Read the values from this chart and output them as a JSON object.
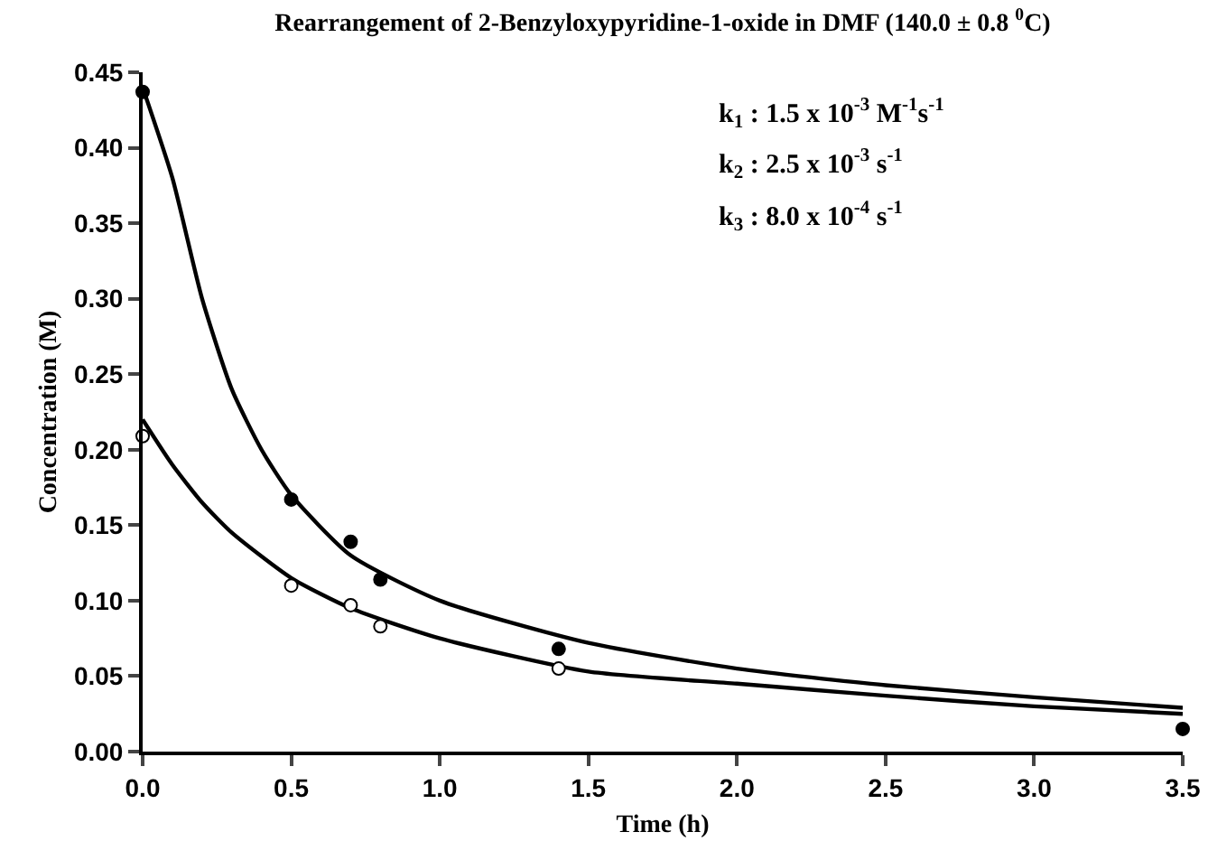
{
  "chart_data": {
    "type": "scatter",
    "title": "Rearrangement of 2-Benzyloxypyridine-1-oxide in DMF (140.0 ± 0.8 $^{0}$C)",
    "xlabel": "Time (h)",
    "ylabel": "Concentration (M)",
    "annotations": [
      "k$_{1}$ : 1.5 x 10$^{-3}$ M$^{-1}$s$^{-1}$",
      "k$_{2}$ : 2.5 x 10$^{-3}$ s$^{-1}$",
      "k$_{3}$ : 8.0 x 10$^{-4}$ s$^{-1}$"
    ],
    "xlim": [
      0,
      3.5
    ],
    "xticks": [
      {
        "value": 0,
        "label": "0.0"
      },
      0.5,
      {
        "value": 1,
        "label": "1.0"
      },
      1.5,
      {
        "value": 2,
        "label": "2.0"
      },
      2.5,
      {
        "value": 3,
        "label": "3.0"
      },
      3.5
    ],
    "ylim": [
      0,
      0.45
    ],
    "yticks": [
      {
        "value": 0,
        "label": "0.00"
      },
      {
        "value": 0.05,
        "label": "0.05"
      },
      {
        "value": 0.1,
        "label": "0.10"
      },
      {
        "value": 0.15,
        "label": "0.15"
      },
      {
        "value": 0.2,
        "label": "0.20"
      },
      {
        "value": 0.25,
        "label": "0.25"
      },
      {
        "value": 0.3,
        "label": "0.30"
      },
      {
        "value": 0.35,
        "label": "0.35"
      },
      {
        "value": 0.4,
        "label": "0.40"
      },
      {
        "value": 0.45,
        "label": "0.45"
      }
    ],
    "grid": false,
    "marker": "circle",
    "series": [
      {
        "type": "line",
        "color": "#000000",
        "marker": "none",
        "line_style": "solid",
        "x": [
          0,
          0.1,
          0.2,
          0.3,
          0.4,
          0.5,
          0.7,
          1.0,
          1.5,
          2.0,
          2.5,
          3.0,
          3.5
        ],
        "values": [
          0.44,
          0.38,
          0.3,
          0.24,
          0.2,
          0.17,
          0.13,
          0.1,
          0.072,
          0.055,
          0.044,
          0.036,
          0.029
        ]
      },
      {
        "type": "line",
        "color": "#000000",
        "marker": "none",
        "line_style": "solid",
        "x": [
          0,
          0.1,
          0.2,
          0.3,
          0.5,
          0.7,
          1.0,
          1.5,
          2.0,
          2.5,
          3.0,
          3.5
        ],
        "values": [
          0.22,
          0.19,
          0.165,
          0.145,
          0.115,
          0.095,
          0.075,
          0.053,
          0.045,
          0.037,
          0.03,
          0.025
        ]
      },
      {
        "type": "scatter",
        "color": "#000000",
        "x": [
          0,
          0.5,
          0.7,
          0.8,
          1.4,
          3.5
        ],
        "values": [
          0.437,
          0.167,
          0.139,
          0.114,
          0.068,
          0.015
        ]
      },
      {
        "type": "scatter",
        "color": "#ffffff",
        "x": [
          0,
          0.5,
          0.7,
          0.8,
          1.4
        ],
        "values": [
          0.209,
          0.11,
          0.097,
          0.083,
          0.055
        ]
      }
    ]
  }
}
